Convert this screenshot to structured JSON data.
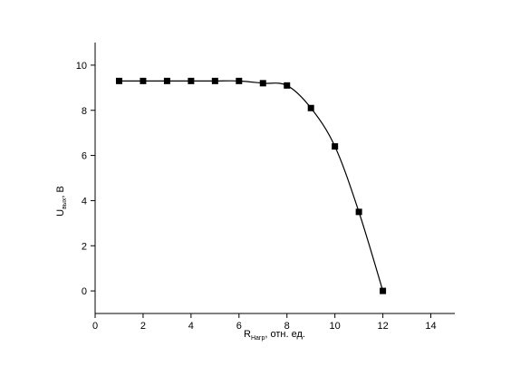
{
  "chart_data": {
    "type": "line",
    "x": [
      1,
      2,
      3,
      4,
      5,
      6,
      7,
      8,
      9,
      10,
      11,
      12
    ],
    "series": [
      {
        "color": "#000000",
        "values": [
          9.3,
          9.3,
          9.3,
          9.3,
          9.3,
          9.3,
          9.2,
          9.1,
          8.1,
          6.4,
          3.5,
          0
        ]
      }
    ],
    "xlim": [
      0,
      15
    ],
    "xticks": [
      0,
      2,
      4,
      6,
      8,
      10,
      12,
      14
    ],
    "ylim": [
      -1,
      11
    ],
    "yticks": [
      0,
      2,
      4,
      6,
      8,
      10
    ],
    "xlabel": {
      "main": "R",
      "sub": "Нагр",
      "suffix": ", отн. ед."
    },
    "ylabel": {
      "main": "U",
      "sub": "вых",
      "suffix": ", В"
    },
    "marker": "square",
    "grid": false
  }
}
